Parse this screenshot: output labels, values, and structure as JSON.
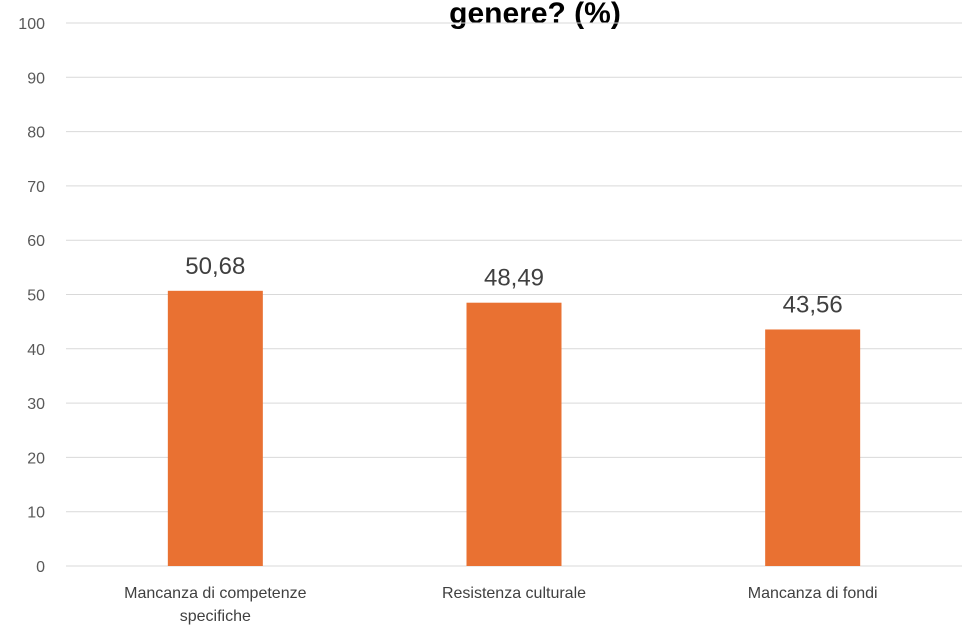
{
  "chart_data": {
    "type": "bar",
    "title": "genere? (%)",
    "categories": [
      [
        "Mancanza di competenze",
        "specifiche"
      ],
      [
        "Resistenza culturale"
      ],
      [
        "Mancanza di fondi"
      ]
    ],
    "values": [
      50.68,
      48.49,
      43.56
    ],
    "data_labels": [
      "50,68",
      "48,49",
      "43,56"
    ],
    "ylim": [
      0,
      100
    ],
    "yticks": [
      0,
      10,
      20,
      30,
      40,
      50,
      60,
      70,
      80,
      90,
      100
    ],
    "grid": true,
    "bar_color": "#e97132",
    "xlabel": "",
    "ylabel": ""
  }
}
